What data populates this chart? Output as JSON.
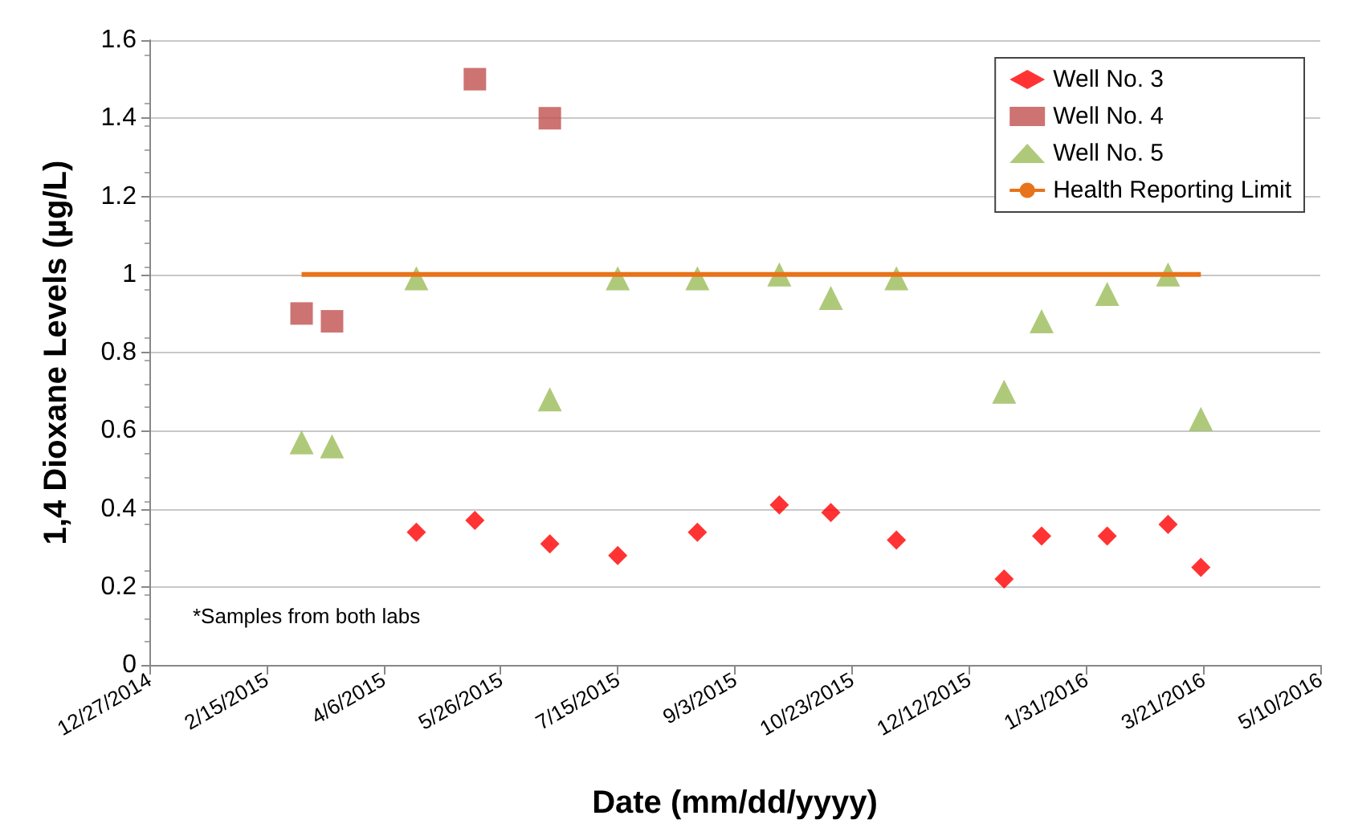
{
  "chart_data": {
    "type": "scatter",
    "xlabel": "Date (mm/dd/yyyy)",
    "ylabel": "1,4 Dioxane Levels (µg/L)",
    "x": [
      "2015-04-20",
      "2015-05-15",
      "2015-06-16",
      "2015-07-15",
      "2015-08-18",
      "2015-09-22",
      "2015-10-14",
      "2015-11-11",
      "2015-12-27",
      "2016-01-12",
      "2016-02-09",
      "2016-03-06",
      "2016-03-20"
    ],
    "series": [
      {
        "name": "Well No. 3",
        "color": "#ff0000",
        "marker": "diamond",
        "values": [
          0.34,
          0.37,
          0.31,
          0.28,
          0.34,
          0.41,
          0.39,
          0.32,
          0.22,
          0.33,
          0.33,
          0.36,
          0.25
        ]
      },
      {
        "name": "Well No. 4",
        "color": "#c0504d",
        "marker": "square",
        "x": [
          "2015-03-02",
          "2015-03-15",
          "2015-05-15",
          "2015-06-16"
        ],
        "values": [
          0.9,
          0.88,
          1.5,
          1.4
        ]
      },
      {
        "name": "Well No. 5",
        "color": "#9bbb59",
        "marker": "triangle",
        "x": [
          "2015-03-02",
          "2015-03-15",
          "2015-04-20",
          "2015-06-16",
          "2015-07-15",
          "2015-08-18",
          "2015-09-22",
          "2015-10-14",
          "2015-11-11",
          "2015-12-27",
          "2016-01-12",
          "2016-02-09",
          "2016-03-06",
          "2016-03-20"
        ],
        "values": [
          0.57,
          0.56,
          0.99,
          0.68,
          0.99,
          0.99,
          1.0,
          0.94,
          0.99,
          0.7,
          0.88,
          0.95,
          1.0,
          0.63
        ]
      },
      {
        "name": "Health Reporting Limit",
        "type": "line",
        "color": "#e8731a",
        "marker": "none",
        "x": [
          "2015-03-02",
          "2016-03-20"
        ],
        "values": [
          1,
          1
        ]
      }
    ],
    "xlim": [
      "2014-12-27",
      "2016-05-10"
    ],
    "xticks": [
      {
        "value": "2014-12-27",
        "label": "12/27/2014"
      },
      {
        "value": "2015-02-15",
        "label": "2/15/2015"
      },
      {
        "value": "2015-04-06",
        "label": "4/6/2015"
      },
      {
        "value": "2015-05-26",
        "label": "5/26/2015"
      },
      {
        "value": "2015-07-15",
        "label": "7/15/2015"
      },
      {
        "value": "2015-09-03",
        "label": "9/3/2015"
      },
      {
        "value": "2015-10-23",
        "label": "10/23/2015"
      },
      {
        "value": "2015-12-12",
        "label": "12/12/2015"
      },
      {
        "value": "2016-01-31",
        "label": "1/31/2016"
      },
      {
        "value": "2016-03-21",
        "label": "3/21/2016"
      },
      {
        "value": "2016-05-10",
        "label": "5/10/2016"
      }
    ],
    "ylim": [
      0,
      1.6
    ],
    "yticks": [
      0,
      0.2,
      0.4,
      0.6,
      0.8,
      1,
      1.2,
      1.4,
      1.6
    ],
    "grid": "y",
    "legend": "top right",
    "annotations": [
      "*Samples from both labs"
    ]
  }
}
